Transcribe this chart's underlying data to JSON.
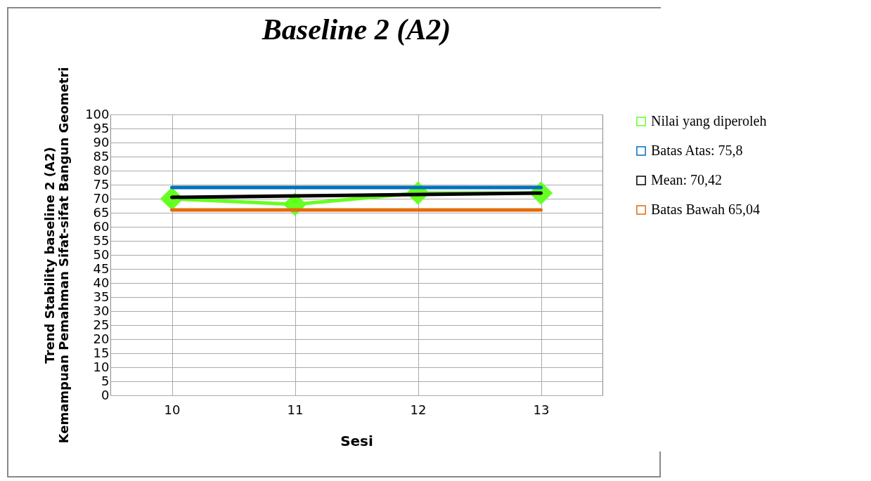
{
  "chart_data": {
    "type": "line",
    "title": "Baseline 2 (A2)",
    "xlabel": "Sesi",
    "ylabel": "Trend Stability baseline 2 (A2)\nKemampuan Pemahman Sifat-sifat Bangun Geometri",
    "categories": [
      "10",
      "11",
      "12",
      "13"
    ],
    "series": [
      {
        "name": "Nilai yang diperoleh",
        "color": "#66ff22",
        "values": [
          70,
          68,
          72,
          72
        ],
        "marker": "diamond"
      },
      {
        "name": "Batas Atas: 75,8",
        "color": "#0070c0",
        "values": [
          74,
          74,
          74,
          74
        ]
      },
      {
        "name": "Mean: 70,42",
        "color": "#000000",
        "values": [
          70.5,
          71,
          71.5,
          72
        ]
      },
      {
        "name": "Batas Bawah 65,04",
        "color": "#e36c09",
        "values": [
          66,
          66,
          66,
          66
        ]
      }
    ],
    "ylim": [
      0,
      100
    ],
    "yticks": [
      0,
      5,
      10,
      15,
      20,
      25,
      30,
      35,
      40,
      45,
      50,
      55,
      60,
      65,
      70,
      75,
      80,
      85,
      90,
      95,
      100
    ],
    "grid": true,
    "legend": "right",
    "line_style": "solid"
  }
}
